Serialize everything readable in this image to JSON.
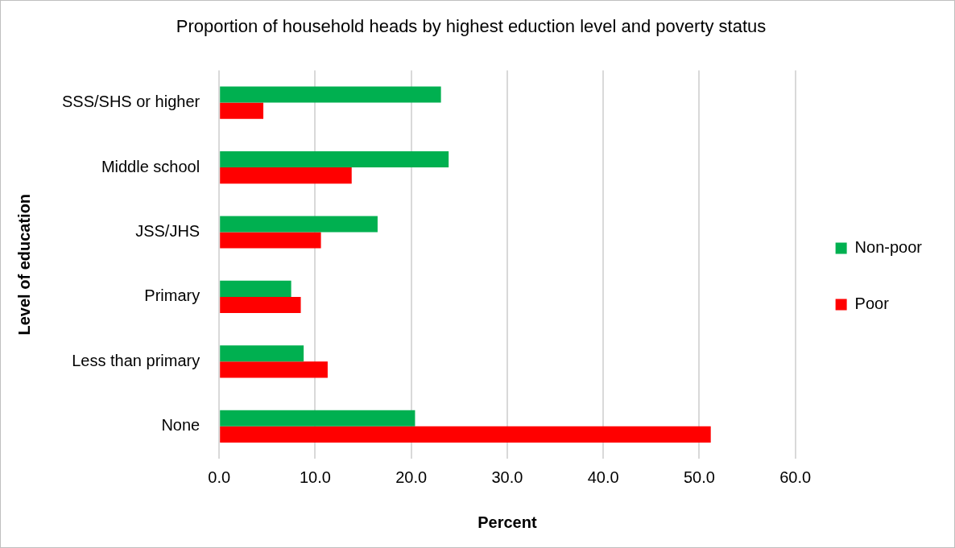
{
  "chart_data": {
    "type": "bar",
    "orientation": "horizontal",
    "title": "Proportion of household heads by highest eduction level and poverty status",
    "xlabel": "Percent",
    "ylabel": "Level of education",
    "categories": [
      "SSS/SHS or higher",
      "Middle school",
      "JSS/JHS",
      "Primary",
      "Less than primary",
      "None"
    ],
    "series": [
      {
        "name": "Non-poor",
        "color": "#00b050",
        "values": [
          23.1,
          23.9,
          16.5,
          7.5,
          8.8,
          20.4
        ]
      },
      {
        "name": "Poor",
        "color": "#ff0000",
        "values": [
          4.6,
          13.8,
          10.6,
          8.5,
          11.3,
          51.2
        ]
      }
    ],
    "xlim": [
      0,
      60
    ],
    "xticks": [
      {
        "value": 0,
        "label": "0.0"
      },
      {
        "value": 10,
        "label": "10.0"
      },
      {
        "value": 20,
        "label": "20.0"
      },
      {
        "value": 30,
        "label": "30.0"
      },
      {
        "value": 40,
        "label": "40.0"
      },
      {
        "value": 50,
        "label": "50.0"
      },
      {
        "value": 60,
        "label": "60.0"
      }
    ],
    "grid": "x",
    "legend": "right"
  }
}
